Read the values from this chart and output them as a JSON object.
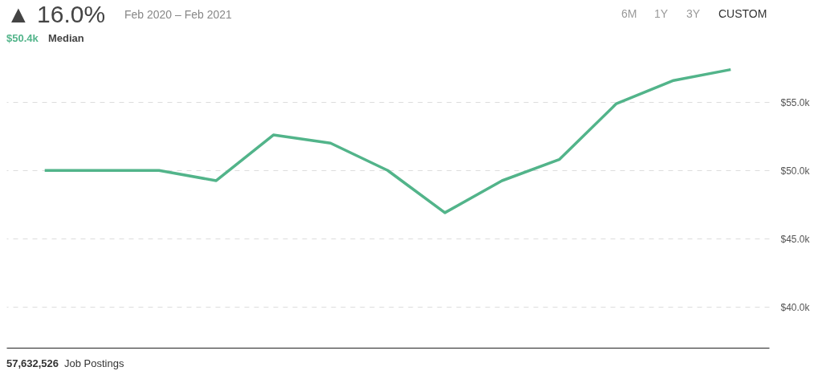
{
  "chart_data": {
    "type": "line",
    "title": "▲ 16.0%",
    "subtitle": "Feb 2020 – Feb 2021",
    "annotations": [
      "$50.4k",
      "Median",
      "6M",
      "1Y",
      "3Y",
      "CUSTOM",
      "57,632,526",
      "Job Postings"
    ],
    "categories": [
      null,
      null,
      null,
      null,
      null,
      null,
      null,
      null,
      null,
      null,
      null,
      null,
      null
    ],
    "series": [
      {
        "color": "#52b48a",
        "values": [
          50000,
          50000,
          50000,
          49250,
          52600,
          52000,
          50000,
          46900,
          49250,
          50800,
          54900,
          56600,
          57400
        ]
      }
    ],
    "ylim": [
      37000,
      62500
    ],
    "yticks": [
      {
        "value": 40000,
        "label": "$40.0k"
      },
      {
        "value": 45000,
        "label": "$45.0k"
      },
      {
        "value": 50000,
        "label": "$50.0k"
      },
      {
        "value": 55000,
        "label": "$55.0k"
      }
    ],
    "grid": "y",
    "tick_labels": "y",
    "marker": "none",
    "line_style": "solid"
  }
}
